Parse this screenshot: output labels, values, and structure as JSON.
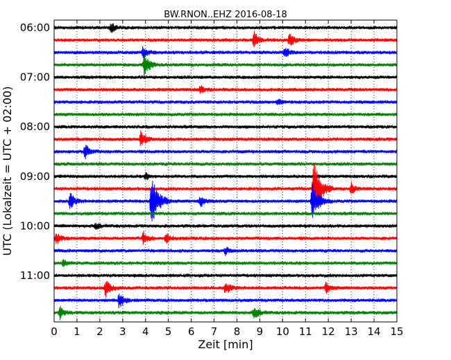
{
  "chart_data": {
    "type": "line",
    "title": "BW.RNON..EHZ 2016-08-18",
    "xlabel": "Zeit  [min]",
    "ylabel": "UTC (Lokalzeit = UTC + 02:00)",
    "xlim": [
      0,
      15
    ],
    "x_ticks": [
      "0",
      "1",
      "2",
      "3",
      "4",
      "5",
      "6",
      "7",
      "8",
      "9",
      "10",
      "11",
      "12",
      "13",
      "14",
      "15"
    ],
    "y_tick_labels": [
      "06:00",
      "07:00",
      "08:00",
      "09:00",
      "10:00",
      "11:00"
    ],
    "grid": "vertical-dotted",
    "colors": [
      "#000000",
      "#ff0000",
      "#0000ff",
      "#008000"
    ],
    "traces": [
      {
        "start": "06:00",
        "events": [
          {
            "t": 2.5,
            "amp": 0.35
          }
        ]
      },
      {
        "start": "06:15",
        "events": [
          {
            "t": 8.75,
            "amp": 0.6
          },
          {
            "t": 10.3,
            "amp": 0.5
          }
        ]
      },
      {
        "start": "06:30",
        "events": [
          {
            "t": 3.9,
            "amp": 0.45
          },
          {
            "t": 10.1,
            "amp": 0.45
          }
        ]
      },
      {
        "start": "06:45",
        "events": [
          {
            "t": 3.95,
            "amp": 0.9
          }
        ]
      },
      {
        "start": "07:00",
        "events": []
      },
      {
        "start": "07:15",
        "events": [
          {
            "t": 6.4,
            "amp": 0.3
          }
        ]
      },
      {
        "start": "07:30",
        "events": [
          {
            "t": 9.8,
            "amp": 0.2
          }
        ]
      },
      {
        "start": "07:45",
        "events": []
      },
      {
        "start": "08:00",
        "events": []
      },
      {
        "start": "08:15",
        "events": [
          {
            "t": 3.8,
            "amp": 0.6
          }
        ]
      },
      {
        "start": "08:30",
        "events": [
          {
            "t": 1.35,
            "amp": 0.55
          }
        ]
      },
      {
        "start": "08:45",
        "events": []
      },
      {
        "start": "09:00",
        "events": [
          {
            "t": 4.0,
            "amp": 0.25
          }
        ]
      },
      {
        "start": "09:15",
        "events": [
          {
            "t": 11.35,
            "amp": 2.0
          },
          {
            "t": 13.0,
            "amp": 0.4
          }
        ]
      },
      {
        "start": "09:30",
        "events": [
          {
            "t": 0.7,
            "amp": 0.6
          },
          {
            "t": 4.25,
            "amp": 1.9
          },
          {
            "t": 6.4,
            "amp": 0.4
          },
          {
            "t": 11.3,
            "amp": 1.4
          }
        ]
      },
      {
        "start": "09:45",
        "events": []
      },
      {
        "start": "10:00",
        "events": [
          {
            "t": 1.8,
            "amp": 0.3
          }
        ]
      },
      {
        "start": "10:15",
        "events": [
          {
            "t": 0.1,
            "amp": 0.45
          },
          {
            "t": 3.9,
            "amp": 0.5
          },
          {
            "t": 4.9,
            "amp": 0.35
          }
        ]
      },
      {
        "start": "10:30",
        "events": [
          {
            "t": 7.5,
            "amp": 0.25
          }
        ]
      },
      {
        "start": "10:45",
        "events": [
          {
            "t": 0.4,
            "amp": 0.25
          }
        ]
      },
      {
        "start": "11:00",
        "events": []
      },
      {
        "start": "11:15",
        "events": [
          {
            "t": 2.25,
            "amp": 0.65
          },
          {
            "t": 7.5,
            "amp": 0.5
          },
          {
            "t": 11.9,
            "amp": 0.4
          }
        ]
      },
      {
        "start": "11:30",
        "events": [
          {
            "t": 2.85,
            "amp": 0.6
          }
        ]
      },
      {
        "start": "11:45",
        "events": [
          {
            "t": 0.25,
            "amp": 0.45
          },
          {
            "t": 8.75,
            "amp": 0.55
          }
        ]
      }
    ]
  }
}
